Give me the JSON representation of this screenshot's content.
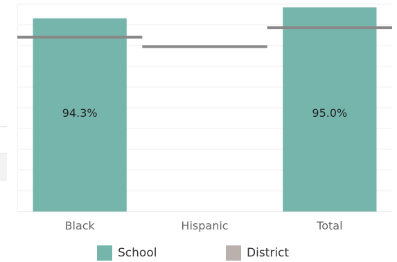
{
  "chart_data": {
    "type": "bar",
    "categories": [
      "Black",
      "Hispanic",
      "Total"
    ],
    "series": [
      {
        "name": "School",
        "values": [
          94.3,
          null,
          95.0
        ],
        "labels": [
          "94.3%",
          "",
          "95.0%"
        ]
      },
      {
        "name": "District",
        "values": [
          93.1,
          92.5,
          93.7
        ]
      }
    ],
    "ylim": [
      82,
      95.2
    ],
    "grid": true,
    "legend": "bottom-center",
    "colors": {
      "School": "#76b5ac",
      "District": "#888888",
      "District_swatch": "#bab0ac"
    }
  },
  "legend": {
    "items": [
      {
        "label": "School",
        "color": "#76b5ac"
      },
      {
        "label": "District",
        "color": "#bab0ac"
      }
    ]
  }
}
